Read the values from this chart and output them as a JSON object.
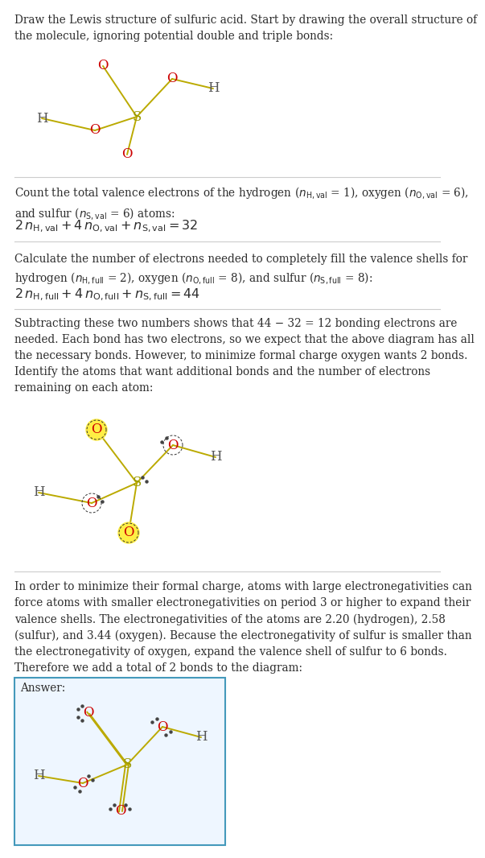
{
  "bg_color": "#ffffff",
  "text_color": "#2d2d2d",
  "O_color": "#cc0000",
  "S_color": "#999900",
  "H_color": "#555555",
  "bond_color": "#bbaa00",
  "sep_color": "#cccccc",
  "highlight_yellow": "#ffee44",
  "answer_border": "#4499bb",
  "answer_bg": "#eef6ff",
  "title": "Draw the Lewis structure of sulfuric acid. Start by drawing the overall structure of\nthe molecule, ignoring potential double and triple bonds:",
  "s1_para": "Count the total valence electrons of the hydrogen ($n_{\\mathrm{H,val}}$ = 1), oxygen ($n_{\\mathrm{O,val}}$ = 6),\nand sulfur ($n_{\\mathrm{S,val}}$ = 6) atoms:",
  "s1_eq": "$2\\,n_{\\mathrm{H,val}} + 4\\,n_{\\mathrm{O,val}} + n_{\\mathrm{S,val}} = 32$",
  "s2_para": "Calculate the number of electrons needed to completely fill the valence shells for\nhydrogen ($n_{\\mathrm{H,full}}$ = 2), oxygen ($n_{\\mathrm{O,full}}$ = 8), and sulfur ($n_{\\mathrm{S,full}}$ = 8):",
  "s2_eq": "$2\\,n_{\\mathrm{H,full}} + 4\\,n_{\\mathrm{O,full}} + n_{\\mathrm{S,full}} = 44$",
  "s3_para": "Subtracting these two numbers shows that 44 − 32 = 12 bonding electrons are\nneeded. Each bond has two electrons, so we expect that the above diagram has all\nthe necessary bonds. However, to minimize formal charge oxygen wants 2 bonds.\nIdentify the atoms that want additional bonds and the number of electrons\nremaining on each atom:",
  "s4_para": "In order to minimize their formal charge, atoms with large electronegativities can\nforce atoms with smaller electronegativities on period 3 or higher to expand their\nvalence shells. The electronegativities of the atoms are 2.20 (hydrogen), 2.58\n(sulfur), and 3.44 (oxygen). Because the electronegativity of sulfur is smaller than\nthe electronegativity of oxygen, expand the valence shell of sulfur to 6 bonds.\nTherefore we add a total of 2 bonds to the diagram:",
  "answer_label": "Answer:"
}
